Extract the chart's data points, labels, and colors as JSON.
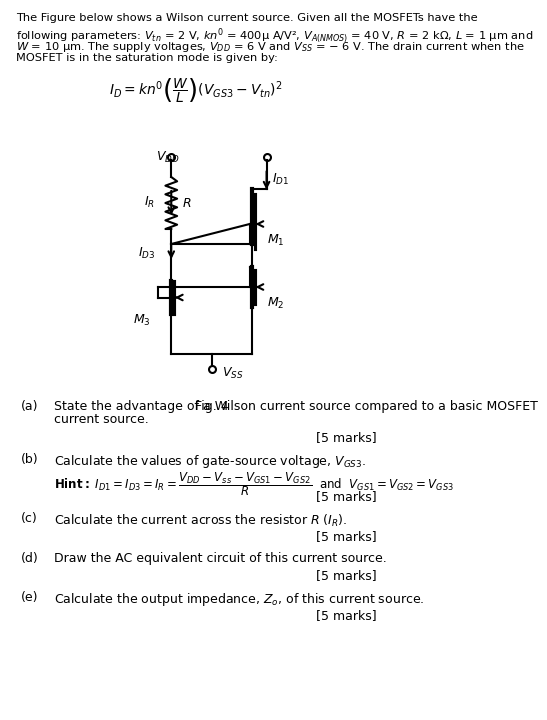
{
  "bg_color": "#ffffff",
  "text_color": "#000000",
  "intro_text": "The Figure below shows a Wilson current source. Given all the MOSFETs have the\nfollowing parameters: Vₙ = 2 V, kn’ = 400μ A/V², Vₐ₍ₙₘₒₛ₎ = 40 V, R = 2 kΩ, L = 1 μm and\nW = 10 μm. The supply voltages, V₀₀ = 6 V and Vₛₛ = − 6 V. The drain current when the\nMOSFET is in the saturation mode is given by:",
  "fig_label": "Fig. 4",
  "questions": [
    {
      "label": "(a)",
      "text": "State the advantage of a Wilson current source compared to a basic MOSFET\ncurrent source.",
      "marks": "[5 marks]"
    },
    {
      "label": "(b)",
      "text": "Calculate the values of gate-source voltage, V₅₃₃.",
      "marks": "[5 marks]",
      "hint": true
    },
    {
      "label": "(c)",
      "text": "Calculate the current across the resistor R (Iᵣ).",
      "marks": "[5 marks]"
    },
    {
      "label": "(d)",
      "text": "Draw the AC equivalent circuit of this current source.",
      "marks": "[5 marks]"
    },
    {
      "label": "(e)",
      "text": "Calculate the output impedance, Zₒ, of this current source.",
      "marks": "[5 marks]"
    }
  ]
}
